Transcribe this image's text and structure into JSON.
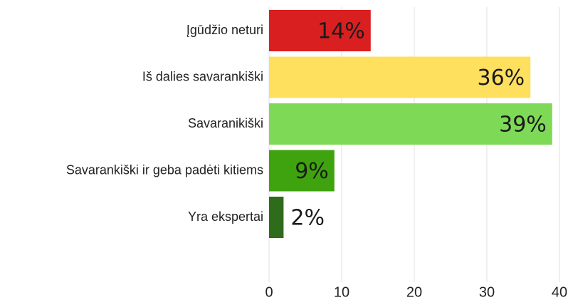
{
  "chart_data": {
    "type": "hbar",
    "categories": [
      "Įgūdžio neturi",
      "Iš dalies savarankiški",
      "Savaranikiški",
      "Savarankiški ir geba padėti kitiems",
      "Yra ekspertai"
    ],
    "values": [
      14,
      36,
      39,
      9,
      2
    ],
    "value_labels": [
      "14%",
      "36%",
      "39%",
      "9%",
      "2%"
    ],
    "colors": [
      "#d91f1f",
      "#fedf5e",
      "#7ed957",
      "#3fa30f",
      "#2e6b1a"
    ],
    "xlim": [
      0,
      40
    ],
    "xticks": [
      0,
      10,
      20,
      30,
      40
    ],
    "grid": true
  }
}
